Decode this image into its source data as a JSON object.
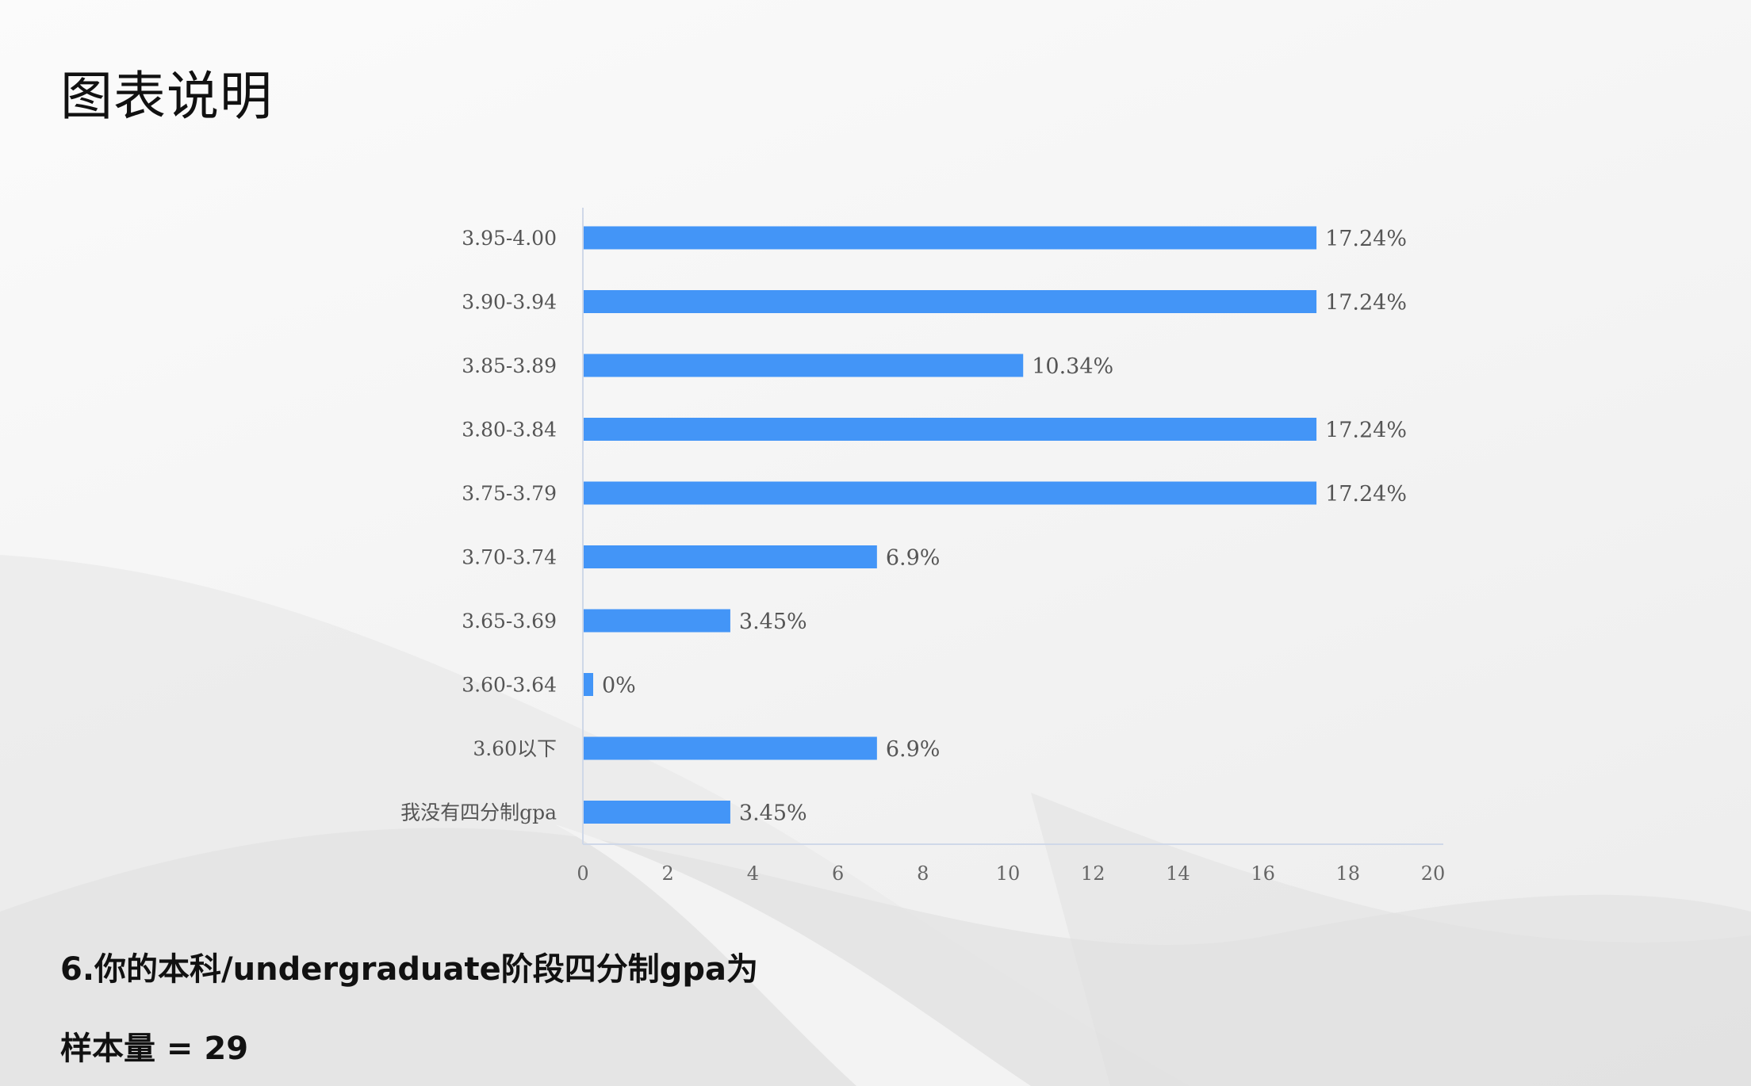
{
  "page": {
    "title": "图表说明",
    "question": "6.你的本科/undergraduate阶段四分制gpa为",
    "sample_size": "样本量 = 29"
  },
  "colors": {
    "bar": "#4395f7",
    "axis": "#cfd8e8",
    "text": "#555555"
  },
  "chart_data": {
    "type": "bar",
    "orientation": "horizontal",
    "categories": [
      "3.95-4.00",
      "3.90-3.94",
      "3.85-3.89",
      "3.80-3.84",
      "3.75-3.79",
      "3.70-3.74",
      "3.65-3.69",
      "3.60-3.64",
      "3.60以下",
      "我没有四分制gpa"
    ],
    "values": [
      17.24,
      17.24,
      10.34,
      17.24,
      17.24,
      6.9,
      3.45,
      0,
      6.9,
      3.45
    ],
    "value_labels": [
      "17.24%",
      "17.24%",
      "10.34%",
      "17.24%",
      "17.24%",
      "6.9%",
      "3.45%",
      "0%",
      "6.9%",
      "3.45%"
    ],
    "xlim": [
      0,
      20
    ],
    "xticks": [
      "0",
      "2",
      "4",
      "6",
      "8",
      "10",
      "12",
      "14",
      "16",
      "18",
      "20"
    ],
    "grid": false,
    "legend": "none"
  }
}
